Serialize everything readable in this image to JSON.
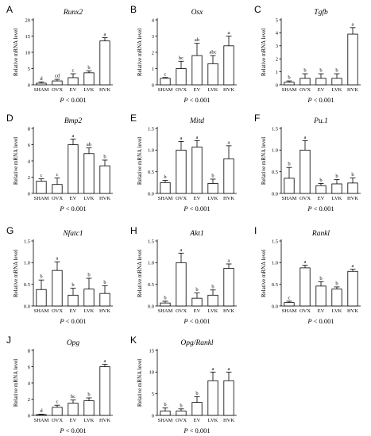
{
  "figure": {
    "ylabel": "Relative mRNA level",
    "categories": [
      "SHAM",
      "OVX",
      "EV",
      "LVK",
      "HVK"
    ]
  },
  "chart_data": [
    {
      "panel": "A",
      "type": "bar",
      "title": "Runx2",
      "ylabel": "Relative mRNA level",
      "categories": [
        "SHAM",
        "OVX",
        "EV",
        "LVK",
        "HVK"
      ],
      "values": [
        0.5,
        1.2,
        2.2,
        3.7,
        13.5
      ],
      "errors": [
        0.4,
        0.5,
        1.2,
        0.6,
        1.0
      ],
      "significance": [
        "d",
        "cd",
        "c",
        "b",
        "a"
      ],
      "yticks": [
        0,
        5,
        10,
        15,
        20
      ],
      "ylim": [
        0,
        20
      ],
      "pvalue": "P < 0.001"
    },
    {
      "panel": "B",
      "type": "bar",
      "title": "Osx",
      "ylabel": "Relative mRNA level",
      "categories": [
        "SHAM",
        "OVX",
        "EV",
        "LVK",
        "HVK"
      ],
      "values": [
        0.4,
        1.0,
        1.8,
        1.3,
        2.4
      ],
      "errors": [
        0.05,
        0.45,
        0.75,
        0.5,
        0.6
      ],
      "significance": [
        "c",
        "bc",
        "ab",
        "abc",
        "a"
      ],
      "yticks": [
        0,
        1,
        2,
        3,
        4
      ],
      "ylim": [
        0,
        4
      ],
      "pvalue": "P < 0.001"
    },
    {
      "panel": "C",
      "type": "bar",
      "title": "Tgfb",
      "ylabel": "Relative mRNA level",
      "categories": [
        "SHAM",
        "OVX",
        "EV",
        "LVK",
        "HVK"
      ],
      "values": [
        0.2,
        0.5,
        0.5,
        0.5,
        3.9
      ],
      "errors": [
        0.1,
        0.35,
        0.35,
        0.35,
        0.5
      ],
      "significance": [
        "b",
        "b",
        "b",
        "b",
        "a"
      ],
      "yticks": [
        0,
        1,
        2,
        3,
        4,
        5
      ],
      "ylim": [
        0,
        5
      ],
      "pvalue": "P < 0.001"
    },
    {
      "panel": "D",
      "type": "bar",
      "title": "Bmp2",
      "ylabel": "Relative mRNA level",
      "categories": [
        "SHAM",
        "OVX",
        "EV",
        "LVK",
        "HVK"
      ],
      "values": [
        1.5,
        1.1,
        6.0,
        4.9,
        3.4
      ],
      "errors": [
        0.3,
        0.8,
        0.7,
        0.7,
        0.7
      ],
      "significance": [
        "c",
        "c",
        "a",
        "ab",
        "b"
      ],
      "yticks": [
        0,
        2,
        4,
        6,
        8
      ],
      "ylim": [
        0,
        8
      ],
      "pvalue": "P < 0.001"
    },
    {
      "panel": "E",
      "type": "bar",
      "title": "Mitd",
      "ylabel": "Relative mRNA level",
      "categories": [
        "SHAM",
        "OVX",
        "EV",
        "LVK",
        "HVK"
      ],
      "values": [
        0.25,
        1.0,
        1.07,
        0.23,
        0.8
      ],
      "errors": [
        0.05,
        0.2,
        0.15,
        0.1,
        0.3
      ],
      "significance": [
        "b",
        "a",
        "a",
        "b",
        "a"
      ],
      "yticks": [
        0.0,
        0.5,
        1.0,
        1.5
      ],
      "ylim": [
        0,
        1.5
      ],
      "pvalue": "P < 0.001"
    },
    {
      "panel": "F",
      "type": "bar",
      "title": "Pu.1",
      "ylabel": "Relative mRNA level",
      "categories": [
        "SHAM",
        "OVX",
        "EV",
        "LVK",
        "HVK"
      ],
      "values": [
        0.35,
        1.0,
        0.18,
        0.22,
        0.24
      ],
      "errors": [
        0.25,
        0.22,
        0.05,
        0.1,
        0.12
      ],
      "significance": [
        "b",
        "a",
        "b",
        "b",
        "b"
      ],
      "yticks": [
        0.0,
        0.5,
        1.0,
        1.5
      ],
      "ylim": [
        0,
        1.5
      ],
      "pvalue": "P < 0.001"
    },
    {
      "panel": "G",
      "type": "bar",
      "title": "Nfatc1",
      "ylabel": "Relative mRNA level",
      "categories": [
        "SHAM",
        "OVX",
        "EV",
        "LVK",
        "HVK"
      ],
      "values": [
        0.38,
        0.82,
        0.25,
        0.39,
        0.29
      ],
      "errors": [
        0.22,
        0.2,
        0.16,
        0.25,
        0.18
      ],
      "significance": [
        "b",
        "a",
        "b",
        "b",
        "b"
      ],
      "yticks": [
        0.0,
        0.5,
        1.0,
        1.5
      ],
      "ylim": [
        0,
        1.5
      ],
      "pvalue": "P < 0.001"
    },
    {
      "panel": "H",
      "type": "bar",
      "title": "Akt1",
      "ylabel": "Relative mRNA level",
      "categories": [
        "SHAM",
        "OVX",
        "EV",
        "LVK",
        "HVK"
      ],
      "values": [
        0.07,
        1.0,
        0.18,
        0.25,
        0.87
      ],
      "errors": [
        0.04,
        0.22,
        0.12,
        0.12,
        0.1
      ],
      "significance": [
        "b",
        "a",
        "b",
        "b",
        "a"
      ],
      "yticks": [
        0.0,
        0.5,
        1.0,
        1.5
      ],
      "ylim": [
        0,
        1.5
      ],
      "pvalue": "P < 0.001"
    },
    {
      "panel": "I",
      "type": "bar",
      "title": "Rankl",
      "ylabel": "Relative mRNA level",
      "categories": [
        "SHAM",
        "OVX",
        "EV",
        "LVK",
        "HVK"
      ],
      "values": [
        0.08,
        0.88,
        0.46,
        0.39,
        0.8
      ],
      "errors": [
        0.03,
        0.06,
        0.1,
        0.05,
        0.05
      ],
      "significance": [
        "c",
        "a",
        "b",
        "b",
        "a"
      ],
      "yticks": [
        0.0,
        0.5,
        1.0,
        1.5
      ],
      "ylim": [
        0,
        1.5
      ],
      "pvalue": "P < 0.001"
    },
    {
      "panel": "J",
      "type": "bar",
      "title": "Opg",
      "ylabel": "Relative mRNA level",
      "categories": [
        "SHAM",
        "OVX",
        "EV",
        "LVK",
        "HVK"
      ],
      "values": [
        0.1,
        1.0,
        1.5,
        1.8,
        6.0
      ],
      "errors": [
        0.05,
        0.25,
        0.4,
        0.35,
        0.3
      ],
      "significance": [
        "d",
        "c",
        "bc",
        "b",
        "a"
      ],
      "yticks": [
        0,
        2,
        4,
        6,
        8
      ],
      "ylim": [
        0,
        8
      ],
      "pvalue": "P < 0.001"
    },
    {
      "panel": "K",
      "type": "bar",
      "title": "Opg/Rankl",
      "ylabel": "Relative mRNA level",
      "categories": [
        "SHAM",
        "OVX",
        "EV",
        "LVK",
        "HVK"
      ],
      "values": [
        1.0,
        1.0,
        3.0,
        8.0,
        8.0
      ],
      "errors": [
        0.7,
        0.5,
        1.3,
        2.0,
        2.0
      ],
      "significance": [
        "b",
        "b",
        "b",
        "a",
        "a"
      ],
      "yticks": [
        0,
        5,
        10,
        15
      ],
      "ylim": [
        0,
        15
      ],
      "pvalue": "P < 0.001"
    }
  ]
}
